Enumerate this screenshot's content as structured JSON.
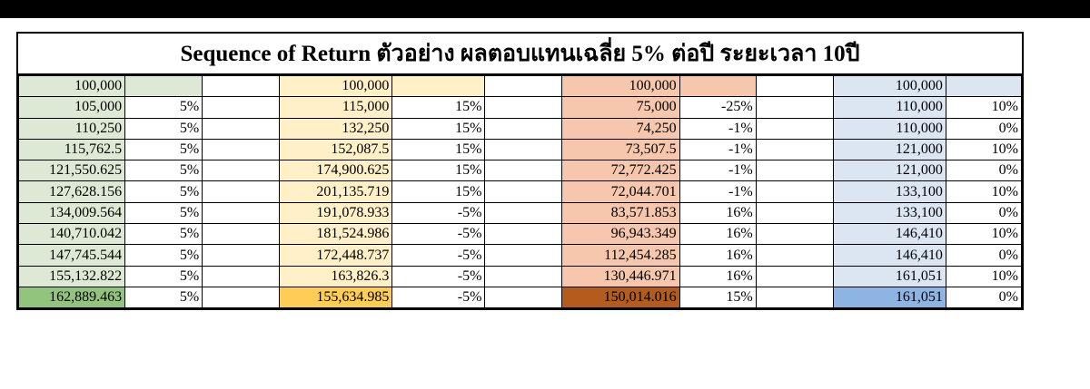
{
  "title": "Sequence of Return ตัวอย่าง ผลตอบแทนเฉลี่ย 5% ต่อปี ระยะเวลา 10ปี",
  "colors": {
    "green_light": "#dde9d5",
    "green_dark": "#93c47d",
    "yellow_light": "#fff0c8",
    "yellow_dark": "#ffcc55",
    "orange_light": "#f6c7ad",
    "orange_dark": "#b35c1e",
    "blue_light": "#dce6f2",
    "blue_dark": "#8eb4e3"
  },
  "groups": [
    "green",
    "yellow",
    "orange",
    "blue"
  ],
  "rows": [
    {
      "green": {
        "value": "100,000",
        "rate": ""
      },
      "yellow": {
        "value": "100,000",
        "rate": ""
      },
      "orange": {
        "value": "100,000",
        "rate": ""
      },
      "blue": {
        "value": "100,000",
        "rate": ""
      }
    },
    {
      "green": {
        "value": "105,000",
        "rate": "5%"
      },
      "yellow": {
        "value": "115,000",
        "rate": "15%"
      },
      "orange": {
        "value": "75,000",
        "rate": "-25%"
      },
      "blue": {
        "value": "110,000",
        "rate": "10%"
      }
    },
    {
      "green": {
        "value": "110,250",
        "rate": "5%"
      },
      "yellow": {
        "value": "132,250",
        "rate": "15%"
      },
      "orange": {
        "value": "74,250",
        "rate": "-1%"
      },
      "blue": {
        "value": "110,000",
        "rate": "0%"
      }
    },
    {
      "green": {
        "value": "115,762.5",
        "rate": "5%"
      },
      "yellow": {
        "value": "152,087.5",
        "rate": "15%"
      },
      "orange": {
        "value": "73,507.5",
        "rate": "-1%"
      },
      "blue": {
        "value": "121,000",
        "rate": "10%"
      }
    },
    {
      "green": {
        "value": "121,550.625",
        "rate": "5%"
      },
      "yellow": {
        "value": "174,900.625",
        "rate": "15%"
      },
      "orange": {
        "value": "72,772.425",
        "rate": "-1%"
      },
      "blue": {
        "value": "121,000",
        "rate": "0%"
      }
    },
    {
      "green": {
        "value": "127,628.156",
        "rate": "5%"
      },
      "yellow": {
        "value": "201,135.719",
        "rate": "15%"
      },
      "orange": {
        "value": "72,044.701",
        "rate": "-1%"
      },
      "blue": {
        "value": "133,100",
        "rate": "10%"
      }
    },
    {
      "green": {
        "value": "134,009.564",
        "rate": "5%"
      },
      "yellow": {
        "value": "191,078.933",
        "rate": "-5%"
      },
      "orange": {
        "value": "83,571.853",
        "rate": "16%"
      },
      "blue": {
        "value": "133,100",
        "rate": "0%"
      }
    },
    {
      "green": {
        "value": "140,710.042",
        "rate": "5%"
      },
      "yellow": {
        "value": "181,524.986",
        "rate": "-5%"
      },
      "orange": {
        "value": "96,943.349",
        "rate": "16%"
      },
      "blue": {
        "value": "146,410",
        "rate": "10%"
      }
    },
    {
      "green": {
        "value": "147,745.544",
        "rate": "5%"
      },
      "yellow": {
        "value": "172,448.737",
        "rate": "-5%"
      },
      "orange": {
        "value": "112,454.285",
        "rate": "16%"
      },
      "blue": {
        "value": "146,410",
        "rate": "0%"
      }
    },
    {
      "green": {
        "value": "155,132.822",
        "rate": "5%"
      },
      "yellow": {
        "value": "163,826.3",
        "rate": "-5%"
      },
      "orange": {
        "value": "130,446.971",
        "rate": "16%"
      },
      "blue": {
        "value": "161,051",
        "rate": "10%"
      }
    },
    {
      "green": {
        "value": "162,889.463",
        "rate": "5%"
      },
      "yellow": {
        "value": "155,634.985",
        "rate": "-5%"
      },
      "orange": {
        "value": "150,014.016",
        "rate": "15%"
      },
      "blue": {
        "value": "161,051",
        "rate": "0%"
      }
    }
  ]
}
